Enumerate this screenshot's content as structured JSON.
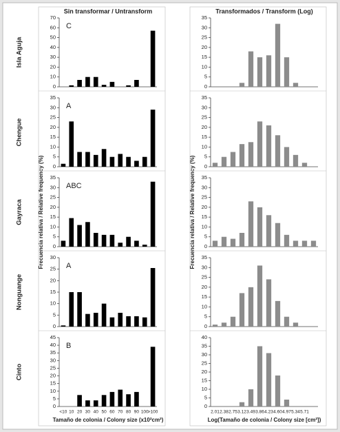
{
  "chart_data": {
    "type": "bar",
    "columns": [
      {
        "title": "Sin transformar / Untransform",
        "x_label": "Tamaño de colonia / Colony size (x10²cm²)",
        "y_label": "Frecuencia relativa / Relative frequency (%)",
        "color": "#000000",
        "categories": [
          "<10",
          "10",
          "20",
          "30",
          "40",
          "50",
          "60",
          "70",
          "80",
          "90",
          "100",
          ">100"
        ]
      },
      {
        "title": "Transformados / Transform (Log)",
        "x_label": "Log(Tamaño de colonia / Colony size [cm²])",
        "y_label": "Frecuencia relativa / Relative frequency (%)",
        "color": "#8c8c8c",
        "categories": [
          "2.01",
          "2.38",
          "2.75",
          "3.12",
          "3.49",
          "3.86",
          "4.23",
          "4.60",
          "4.97",
          "5.34",
          "5.71",
          null
        ]
      }
    ],
    "rows": [
      {
        "label": "Isla Aguja",
        "panels": [
          {
            "annotation": "C",
            "values": [
              0,
              1.5,
              7,
              10,
              10,
              2,
              5,
              0,
              1.5,
              7,
              0,
              57
            ],
            "ylim": [
              0,
              70
            ],
            "yticks": [
              0,
              10,
              20,
              30,
              40,
              50,
              60,
              70
            ]
          },
          {
            "values": [
              0,
              0,
              0,
              2,
              18,
              15,
              16,
              32,
              15,
              2,
              0,
              0
            ],
            "ylim": [
              0,
              35
            ],
            "yticks": [
              0,
              5,
              10,
              15,
              20,
              25,
              30,
              35
            ]
          }
        ]
      },
      {
        "label": "Chengue",
        "panels": [
          {
            "annotation": "A",
            "values": [
              1.5,
              23,
              7.5,
              7.5,
              6,
              9,
              5,
              6.5,
              5,
              3,
              5,
              29
            ],
            "ylim": [
              0,
              35
            ],
            "yticks": [
              0,
              5,
              10,
              15,
              20,
              25,
              30,
              35
            ]
          },
          {
            "values": [
              2,
              5,
              7.5,
              11.5,
              12.5,
              23,
              21,
              16,
              10,
              6,
              2,
              0
            ],
            "ylim": [
              0,
              35
            ],
            "yticks": [
              0,
              5,
              10,
              15,
              20,
              25,
              30,
              35
            ]
          }
        ]
      },
      {
        "label": "Gayraca",
        "panels": [
          {
            "annotation": "ABC",
            "values": [
              3,
              14.5,
              11,
              12.5,
              7,
              6,
              6,
              2,
              5,
              3,
              1,
              33
            ],
            "ylim": [
              0,
              35
            ],
            "yticks": [
              0,
              5,
              10,
              15,
              20,
              25,
              30,
              35
            ]
          },
          {
            "values": [
              3,
              5,
              4,
              7,
              23,
              20,
              16,
              12,
              6,
              3,
              3,
              3
            ],
            "ylim": [
              0,
              35
            ],
            "yticks": [
              0,
              5,
              10,
              15,
              20,
              25,
              30,
              35
            ]
          }
        ]
      },
      {
        "label": "Nonguange",
        "panels": [
          {
            "annotation": "A",
            "values": [
              0.5,
              15,
              15,
              5.5,
              6,
              10,
              4,
              6,
              4.5,
              4.5,
              4,
              25.5
            ],
            "ylim": [
              0,
              30
            ],
            "yticks": [
              0,
              5,
              10,
              15,
              20,
              25,
              30
            ]
          },
          {
            "values": [
              1,
              2,
              5,
              17,
              20,
              31,
              24,
              13,
              5,
              2,
              0,
              0
            ],
            "ylim": [
              0,
              35
            ],
            "yticks": [
              0,
              5,
              10,
              15,
              20,
              25,
              30,
              35
            ]
          }
        ]
      },
      {
        "label": "Cinto",
        "panels": [
          {
            "annotation": "B",
            "values": [
              0,
              0,
              7.5,
              4,
              4,
              7.5,
              9.5,
              11,
              8,
              9.5,
              0,
              39
            ],
            "ylim": [
              0,
              45
            ],
            "yticks": [
              0,
              5,
              10,
              15,
              20,
              25,
              30,
              35,
              40,
              45
            ]
          },
          {
            "values": [
              0,
              0,
              0,
              2.5,
              10,
              35,
              31,
              18,
              4,
              0,
              0,
              0
            ],
            "ylim": [
              0,
              40
            ],
            "yticks": [
              0,
              5,
              10,
              15,
              20,
              25,
              30,
              35,
              40
            ]
          }
        ]
      }
    ]
  }
}
